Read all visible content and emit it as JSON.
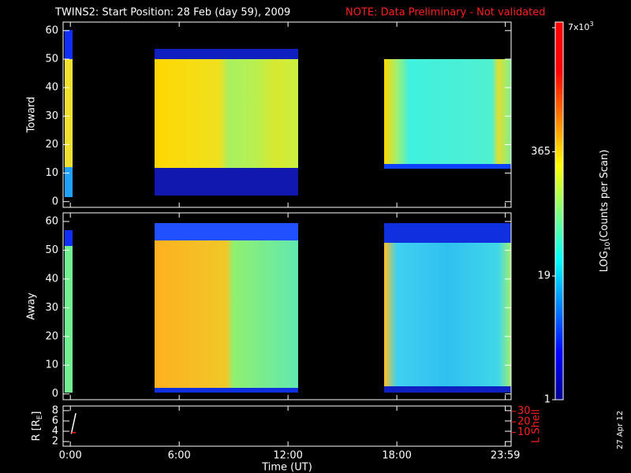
{
  "title": "TWINS2: Start Position: 28 Feb (day  59), 2009",
  "note": "NOTE: Data Preliminary - Not validated",
  "date_stamp": "27 Apr 12",
  "chart_data": [
    {
      "type": "heatmap",
      "ylabel": "Toward",
      "ylim": [
        -2,
        63
      ],
      "yticks": [
        0,
        10,
        20,
        30,
        40,
        50,
        60
      ]
    },
    {
      "type": "heatmap",
      "ylabel": "Away",
      "ylim": [
        -2,
        63
      ],
      "yticks": [
        0,
        10,
        20,
        30,
        40,
        50,
        60
      ]
    },
    {
      "type": "line",
      "ylabel": "R [R",
      "ylabel_sub": "E",
      "ylabel_end": "]",
      "ylim": [
        1.1,
        8.9
      ],
      "yticks": [
        2,
        4,
        6,
        8
      ],
      "y2label": "L Shell",
      "y2lim": [
        -2.9,
        35
      ],
      "y2ticks": [
        10,
        20,
        30
      ],
      "xlabel": "Time (UT)",
      "xlim": [
        -0.4,
        24.3
      ],
      "xticks": [
        {
          "value": 0,
          "label": "0:00"
        },
        {
          "value": 6,
          "label": "6:00"
        },
        {
          "value": 12,
          "label": "12:00"
        },
        {
          "value": 18,
          "label": "18:00"
        },
        {
          "value": 23.98,
          "label": "23:59"
        }
      ],
      "series": [
        {
          "color": "#ffffff",
          "x": [
            0.05,
            0.3
          ],
          "values": [
            3.5,
            7.5
          ]
        },
        {
          "color": "#ff2020",
          "axis": "y2",
          "x": [
            0.05,
            0.3
          ],
          "values": [
            10,
            10
          ]
        }
      ]
    }
  ],
  "colorbar": {
    "label": "LOG",
    "label_sub": "10",
    "label_end": "(Counts per Scan)",
    "log": true,
    "lim": [
      1,
      8000
    ],
    "ticks": [
      1,
      19,
      365,
      {
        "value": 7000,
        "label": "7x10",
        "label_sup": "3"
      }
    ]
  }
}
